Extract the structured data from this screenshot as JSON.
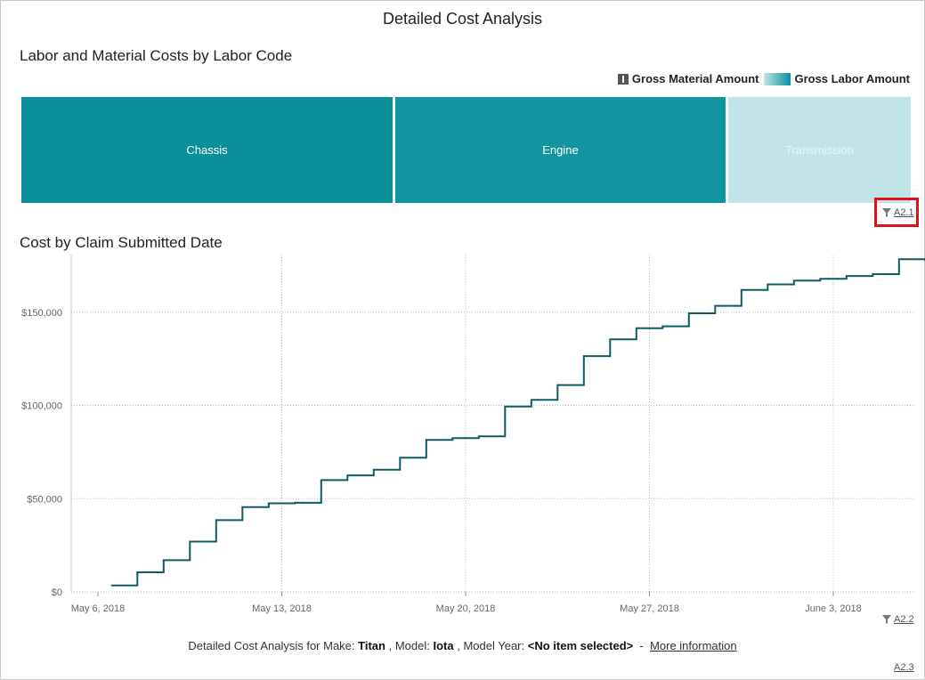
{
  "page": {
    "title": "Detailed Cost Analysis"
  },
  "treemap": {
    "title": "Labor and Material Costs by Labor Code",
    "legend": {
      "material_label": "Gross Material Amount",
      "labor_label": "Gross Labor Amount"
    },
    "tiles": [
      {
        "label": "Chassis",
        "color": "#0a8f9b",
        "text_color": "#ffffff"
      },
      {
        "label": "Engine",
        "color": "#13959f",
        "text_color": "#ffffff"
      },
      {
        "label": "Transmission",
        "color": "#c0e4e7",
        "text_color": "#e8f6f7"
      }
    ],
    "filter_link": "A2.1"
  },
  "chart": {
    "title": "Cost by Claim Submitted Date",
    "filter_link": "A2.2"
  },
  "chart_data": {
    "type": "line",
    "step": true,
    "title": "Cost by Claim Submitted Date",
    "xlabel": "",
    "ylabel": "",
    "x_ticks": [
      "May 6, 2018",
      "May 13, 2018",
      "May 20, 2018",
      "May 27, 2018",
      "June 3, 2018"
    ],
    "y_ticks": [
      "$0",
      "$50,000",
      "$100,000",
      "$150,000"
    ],
    "ylim": [
      0,
      180000
    ],
    "xlim": [
      "2018-05-06",
      "2018-06-08"
    ],
    "grid": true,
    "line_color": "#0d5c63",
    "series": [
      {
        "x": [
          "2018-05-07",
          "2018-05-08",
          "2018-05-09",
          "2018-05-10",
          "2018-05-11",
          "2018-05-12",
          "2018-05-13",
          "2018-05-14",
          "2018-05-15",
          "2018-05-16",
          "2018-05-17",
          "2018-05-18",
          "2018-05-19",
          "2018-05-20",
          "2018-05-21",
          "2018-05-22",
          "2018-05-23",
          "2018-05-24",
          "2018-05-25",
          "2018-05-26",
          "2018-05-27",
          "2018-05-28",
          "2018-05-29",
          "2018-05-30",
          "2018-05-31",
          "2018-06-01",
          "2018-06-02",
          "2018-06-03",
          "2018-06-04",
          "2018-06-05",
          "2018-06-06",
          "2018-06-07"
        ],
        "values": [
          3500,
          10500,
          17000,
          27000,
          38500,
          45500,
          47500,
          47800,
          60000,
          62500,
          65500,
          72000,
          81500,
          82500,
          83500,
          99500,
          103000,
          111000,
          126500,
          135500,
          141500,
          142500,
          149500,
          153500,
          162000,
          165000,
          167000,
          168000,
          169500,
          170500,
          178500,
          178000
        ]
      }
    ]
  },
  "footer": {
    "prefix": "Detailed Cost Analysis for Make:",
    "make": "Titan",
    "model_label": ", Model:",
    "model": "Iota",
    "year_label": ", Model Year:",
    "year": "<No item selected>",
    "separator": "-",
    "more_info": "More information",
    "link": "A2.3"
  }
}
